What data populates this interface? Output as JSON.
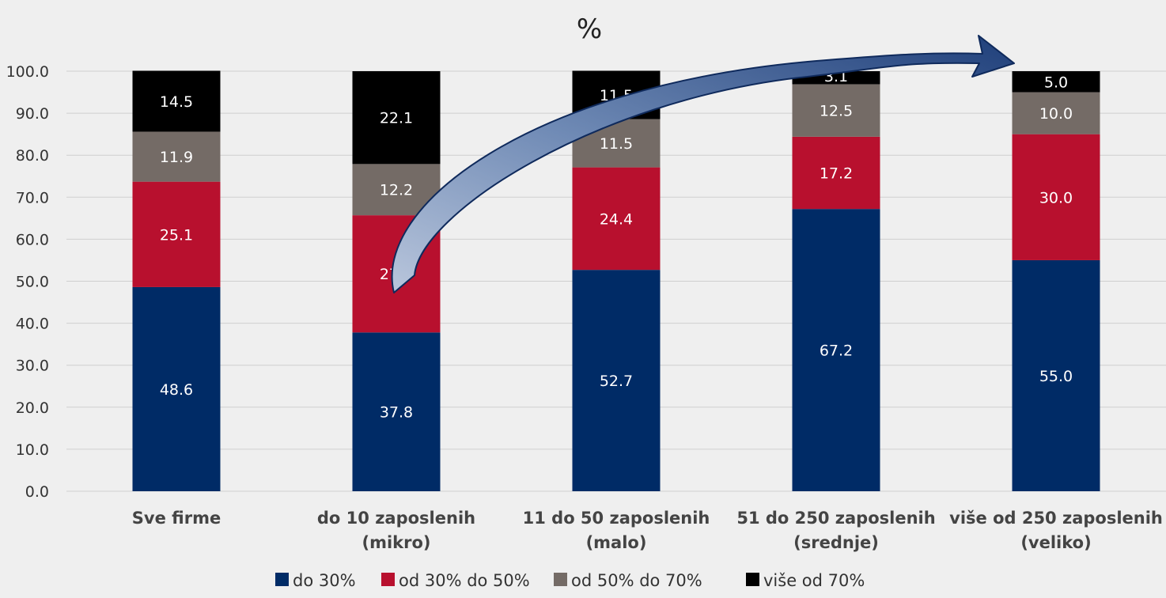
{
  "chart_data": {
    "type": "bar",
    "stacked": true,
    "title": "%",
    "xlabel": "",
    "ylabel": "",
    "ylim": [
      0,
      100
    ],
    "yticks": [
      "0.0",
      "10.0",
      "20.0",
      "30.0",
      "40.0",
      "50.0",
      "60.0",
      "70.0",
      "80.0",
      "90.0",
      "100.0"
    ],
    "grid": true,
    "legend_position": "bottom",
    "categories": [
      [
        "Sve firme"
      ],
      [
        "do 10 zaposlenih",
        "(mikro)"
      ],
      [
        "11 do 50 zaposlenih",
        "(malo)"
      ],
      [
        "51 do 250 zaposlenih",
        "(srednje)"
      ],
      [
        "više od 250 zaposlenih",
        "(veliko)"
      ]
    ],
    "series": [
      {
        "name": "do 30%",
        "color": "#002b66",
        "values": [
          48.6,
          37.8,
          52.7,
          67.2,
          55.0
        ],
        "labels": [
          "48.6",
          "37.8",
          "52.7",
          "67.2",
          "55.0"
        ]
      },
      {
        "name": "od 30% do 50%",
        "color": "#b8102e",
        "values": [
          25.1,
          27.9,
          24.4,
          17.2,
          30.0
        ],
        "labels": [
          "25.1",
          "27.9",
          "24.4",
          "17.2",
          "30.0"
        ]
      },
      {
        "name": "od 50% do 70%",
        "color": "#746b66",
        "values": [
          11.9,
          12.2,
          11.5,
          12.5,
          10.0
        ],
        "labels": [
          "11.9",
          "12.2",
          "11.5",
          "12.5",
          "10.0"
        ]
      },
      {
        "name": "više od 70%",
        "color": "#000000",
        "values": [
          14.5,
          22.1,
          11.5,
          3.1,
          5.0
        ],
        "labels": [
          "14.5",
          "22.1",
          "11.5",
          "3.1",
          "5.0"
        ]
      }
    ],
    "annotation": {
      "type": "curved-arrow",
      "from_category": 1,
      "to_category": 4,
      "color": "#1f3f7a"
    }
  }
}
